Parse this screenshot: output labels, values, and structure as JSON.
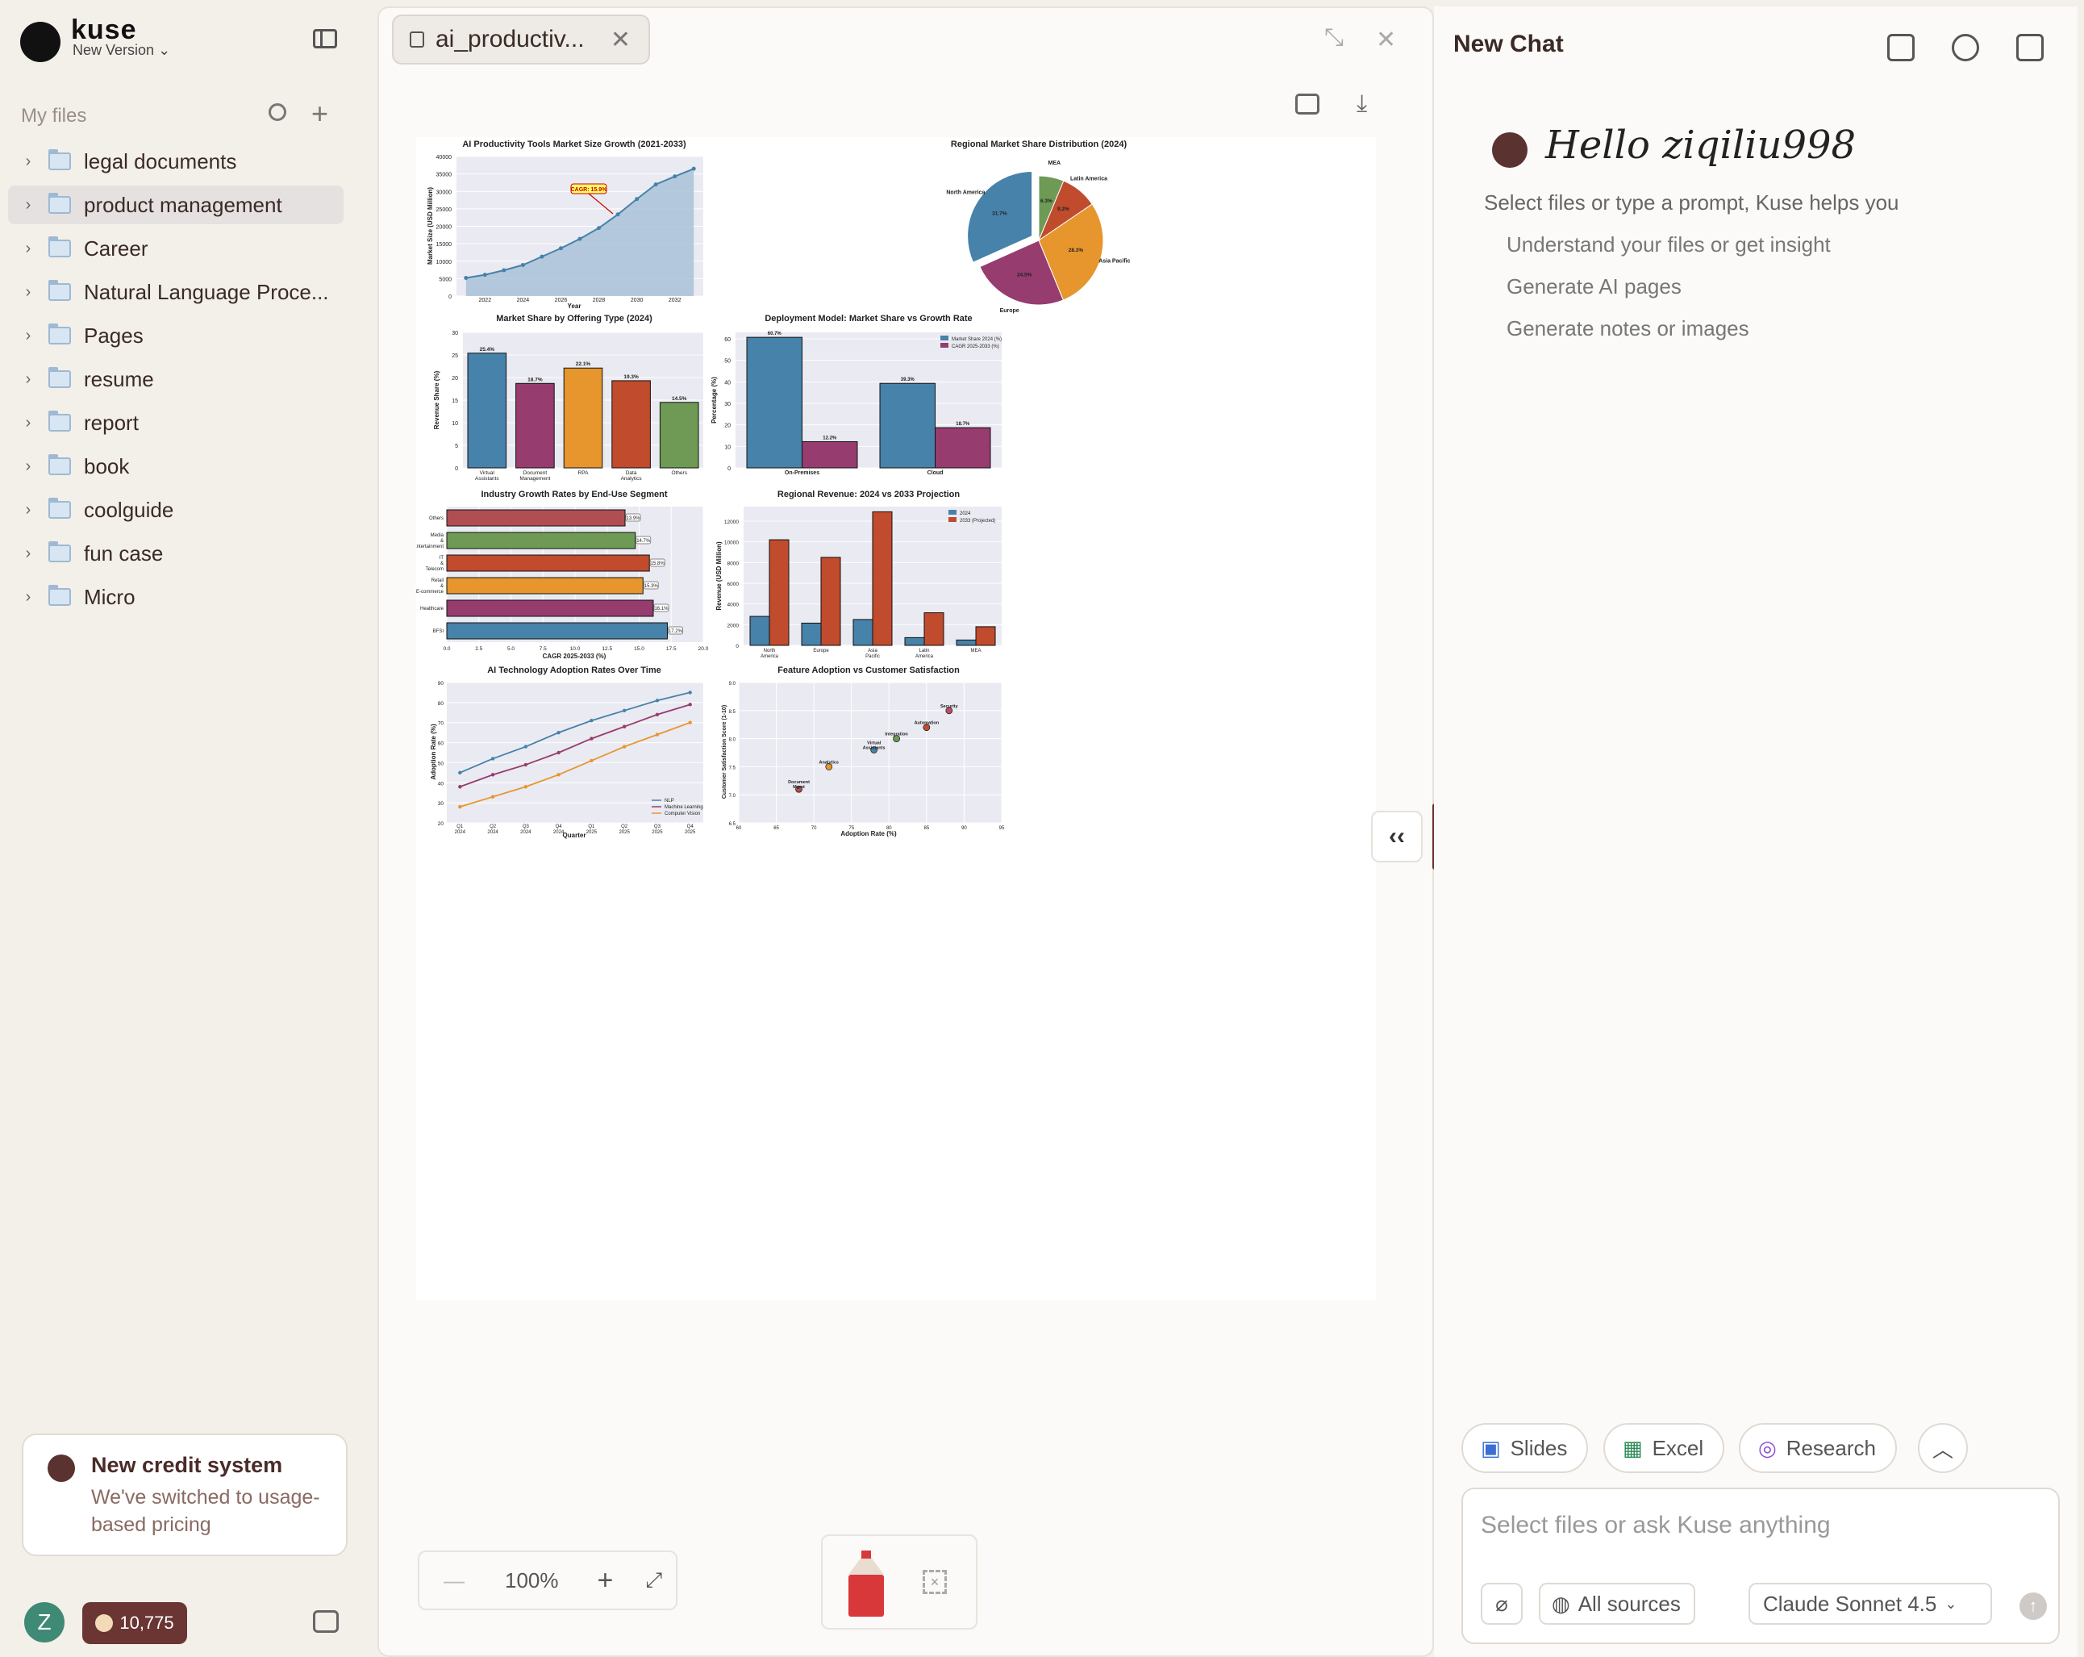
{
  "sidebar": {
    "brand": "kuse",
    "version": "New Version",
    "section_label": "My files",
    "folders": [
      {
        "label": "legal documents",
        "selected": false
      },
      {
        "label": "product management",
        "selected": true
      },
      {
        "label": "Career",
        "selected": false
      },
      {
        "label": "Natural Language Proce...",
        "selected": false
      },
      {
        "label": "Pages",
        "selected": false
      },
      {
        "label": "resume",
        "selected": false
      },
      {
        "label": "report",
        "selected": false
      },
      {
        "label": "book",
        "selected": false
      },
      {
        "label": "coolguide",
        "selected": false
      },
      {
        "label": "fun case",
        "selected": false
      },
      {
        "label": "Micro",
        "selected": false
      }
    ],
    "credit_card": {
      "title": "New credit system",
      "text": "We've switched to usage-based pricing"
    },
    "avatar_letter": "Z",
    "credits": "10,775"
  },
  "viewer": {
    "tab_title": "ai_productiv...",
    "zoom": "100%",
    "zoom_minus": "—",
    "zoom_plus": "+"
  },
  "chat": {
    "title": "New Chat",
    "greeting": "Hello ziqiliu998",
    "intro": "Select files or type a prompt, Kuse helps you",
    "suggestions": [
      "Understand your files or get insight",
      "Generate AI pages",
      "Generate notes or images"
    ],
    "chips": [
      "Slides",
      "Excel",
      "Research"
    ],
    "input_placeholder": "Select files or ask Kuse anything",
    "sources": "All sources",
    "model": "Claude Sonnet 4.5"
  },
  "colors": {
    "accent": "#6b3533",
    "blue": "#4682a9",
    "purple": "#963c6e",
    "orange": "#e6962d",
    "red": "#c04b2d",
    "green": "#6e9a55",
    "plotbg": "#eaeaf2"
  },
  "chart_data": [
    {
      "type": "area",
      "title": "AI Productivity Tools Market Size Growth (2021-2033)",
      "xlabel": "Year",
      "ylabel": "Market Size (USD Million)",
      "x": [
        2021,
        2022,
        2023,
        2024,
        2025,
        2026,
        2027,
        2028,
        2029,
        2030,
        2031,
        2032,
        2033
      ],
      "values": [
        5200,
        6100,
        7400,
        8900,
        11300,
        13700,
        16400,
        19500,
        23400,
        27800,
        32000,
        34300,
        36500
      ],
      "xticks": [
        "2022",
        "2024",
        "2026",
        "2028",
        "2030",
        "2032"
      ],
      "yticks": [
        "0",
        "5000",
        "10000",
        "15000",
        "20000",
        "25000",
        "30000",
        "35000",
        "40000"
      ],
      "ylim": [
        0,
        40000
      ],
      "annotation": "CAGR: 15.9%"
    },
    {
      "type": "pie",
      "title": "Regional Market Share Distribution (2024)",
      "labels": [
        "MEA",
        "Latin America",
        "Asia Pacific",
        "Europe",
        "North America"
      ],
      "values": [
        6.3,
        9.2,
        28.3,
        24.5,
        31.7
      ],
      "value_labels": [
        "6.3%",
        "9.2%",
        "28.3%",
        "24.5%",
        "31.7%"
      ],
      "colors": [
        "#6e9a55",
        "#c04b2d",
        "#e6962d",
        "#963c6e",
        "#4682a9"
      ]
    },
    {
      "type": "bar",
      "title": "Market Share by Offering Type (2024)",
      "ylabel": "Revenue Share (%)",
      "categories": [
        "Virtual Assistants",
        "Document Management",
        "RPA",
        "Data Analytics",
        "Others"
      ],
      "values": [
        25.4,
        18.7,
        22.1,
        19.3,
        14.5
      ],
      "value_labels": [
        "25.4%",
        "18.7%",
        "22.1%",
        "19.3%",
        "14.5%"
      ],
      "yticks": [
        "0",
        "5",
        "10",
        "15",
        "20",
        "25",
        "30"
      ],
      "ylim": [
        0,
        30
      ],
      "colors": [
        "#4682a9",
        "#963c6e",
        "#e6962d",
        "#c04b2d",
        "#6e9a55"
      ]
    },
    {
      "type": "bar",
      "title": "Deployment Model: Market Share vs Growth Rate",
      "ylabel": "Percentage (%)",
      "categories": [
        "On-Premises",
        "Cloud"
      ],
      "series": [
        {
          "name": "Market Share 2024 (%)",
          "values": [
            60.7,
            39.3
          ],
          "labels": [
            "60.7%",
            "39.3%"
          ]
        },
        {
          "name": "CAGR 2025-2033 (%)",
          "values": [
            12.2,
            18.7
          ],
          "labels": [
            "12.2%",
            "18.7%"
          ]
        }
      ],
      "yticks": [
        "0",
        "10",
        "20",
        "30",
        "40",
        "50",
        "60"
      ],
      "ylim": [
        0,
        63
      ]
    },
    {
      "type": "bar",
      "orientation": "horizontal",
      "title": "Industry Growth Rates by End-Use Segment",
      "xlabel": "CAGR 2025-2033 (%)",
      "categories": [
        "Others",
        "Media & Entertainment",
        "IT & Telecom",
        "Retail & E-commerce",
        "Healthcare",
        "BFSI"
      ],
      "values": [
        13.9,
        14.7,
        15.8,
        15.3,
        16.1,
        17.2
      ],
      "value_labels": [
        "13.9%",
        "14.7%",
        "15.8%",
        "15.3%",
        "16.1%",
        "17.2%"
      ],
      "xticks": [
        "0.0",
        "2.5",
        "5.0",
        "7.5",
        "10.0",
        "12.5",
        "15.0",
        "17.5",
        "20.0"
      ],
      "xlim": [
        0,
        20
      ],
      "colors": [
        "#b04e52",
        "#6e9a55",
        "#c04b2d",
        "#e6962d",
        "#963c6e",
        "#4682a9"
      ]
    },
    {
      "type": "bar",
      "title": "Regional Revenue: 2024 vs 2033 Projection",
      "ylabel": "Revenue (USD Million)",
      "categories": [
        "North America",
        "Europe",
        "Asia Pacific",
        "Latin America",
        "MEA"
      ],
      "series": [
        {
          "name": "2024",
          "values": [
            2800,
            2150,
            2500,
            750,
            520
          ]
        },
        {
          "name": "2033 (Projected)",
          "values": [
            10200,
            8500,
            12900,
            3150,
            1800
          ]
        }
      ],
      "yticks": [
        "0",
        "2000",
        "4000",
        "6000",
        "8000",
        "10000",
        "12000"
      ],
      "ylim": [
        0,
        13400
      ]
    },
    {
      "type": "line",
      "title": "AI Technology Adoption Rates Over Time",
      "xlabel": "Quarter",
      "ylabel": "Adoption Rate (%)",
      "categories": [
        "Q1 2024",
        "Q2 2024",
        "Q3 2024",
        "Q4 2024",
        "Q1 2025",
        "Q2 2025",
        "Q3 2025",
        "Q4 2025"
      ],
      "series": [
        {
          "name": "NLP",
          "values": [
            45,
            52,
            58,
            65,
            71,
            76,
            81,
            85
          ]
        },
        {
          "name": "Machine Learning",
          "values": [
            38,
            44,
            49,
            55,
            62,
            68,
            74,
            79
          ]
        },
        {
          "name": "Computer Vision",
          "values": [
            28,
            33,
            38,
            44,
            51,
            58,
            64,
            70
          ]
        }
      ],
      "yticks": [
        "20",
        "30",
        "40",
        "50",
        "60",
        "70",
        "80",
        "90"
      ],
      "ylim": [
        20,
        90
      ]
    },
    {
      "type": "scatter",
      "title": "Feature Adoption vs Customer Satisfaction",
      "xlabel": "Adoption Rate (%)",
      "ylabel": "Customer Satisfaction Score (1-10)",
      "points": [
        {
          "label": "Document Mgmt",
          "x": 68,
          "y": 7.1
        },
        {
          "label": "Analytics",
          "x": 72,
          "y": 7.5
        },
        {
          "label": "Virtual Assistants",
          "x": 78,
          "y": 7.8
        },
        {
          "label": "Integration",
          "x": 81,
          "y": 8.0
        },
        {
          "label": "Automation",
          "x": 85,
          "y": 8.2
        },
        {
          "label": "Security",
          "x": 88,
          "y": 8.5
        }
      ],
      "xticks": [
        "60",
        "65",
        "70",
        "75",
        "80",
        "85",
        "90",
        "95"
      ],
      "yticks": [
        "6.5",
        "7.0",
        "7.5",
        "8.0",
        "8.5",
        "9.0"
      ],
      "xlim": [
        60,
        95
      ],
      "ylim": [
        6.5,
        9.0
      ]
    }
  ]
}
